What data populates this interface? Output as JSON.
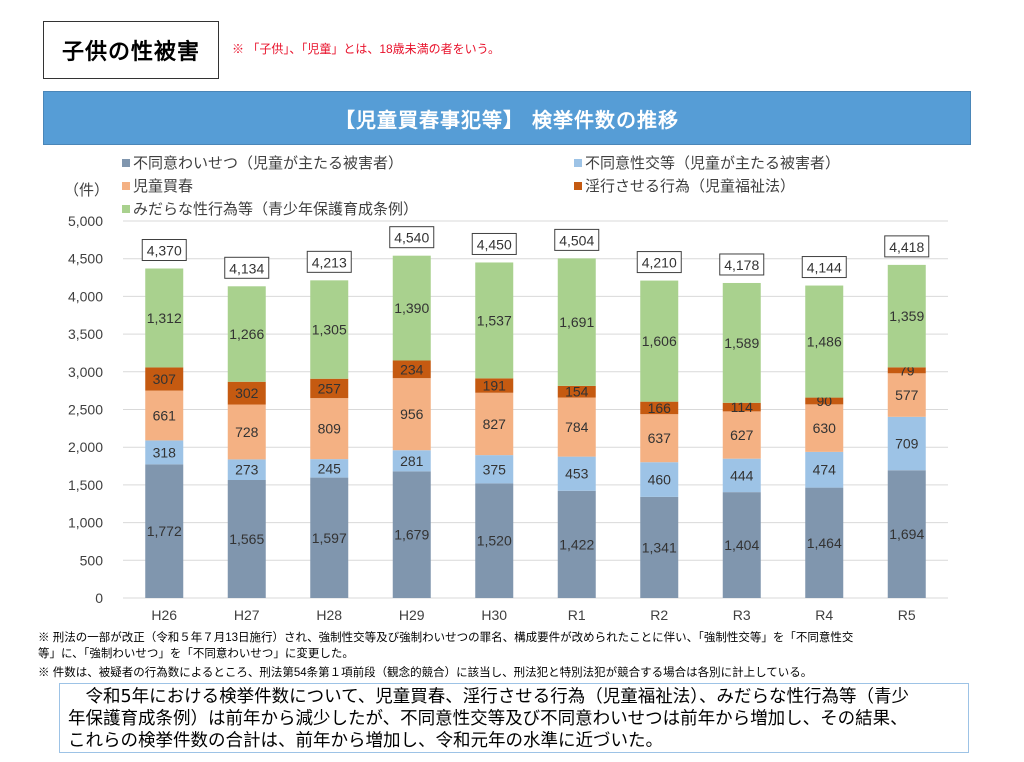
{
  "header": {
    "section_title": "子供の性被害",
    "definition_note": "※ 「子供」、「児童」とは、18歳未満の者をいう。",
    "banner_title": "【児童買春事犯等】 検挙件数の推移"
  },
  "colors": {
    "banner": "#569dd6",
    "note_red": "#e8102a",
    "series": [
      "#8096ae",
      "#9dc3e6",
      "#f4b183",
      "#c55a11",
      "#a9d18e"
    ]
  },
  "chart_data": {
    "type": "bar",
    "stacked": true,
    "title": "【児童買春事犯等】 検挙件数の推移",
    "xlabel": "",
    "ylabel": "（件）",
    "ylim": [
      0,
      5000
    ],
    "yticks": [
      0,
      500,
      1000,
      1500,
      2000,
      2500,
      3000,
      3500,
      4000,
      4500,
      5000
    ],
    "ytick_labels": [
      "0",
      "500",
      "1,000",
      "1,500",
      "2,000",
      "2,500",
      "3,000",
      "3,500",
      "4,000",
      "4,500",
      "5,000"
    ],
    "grid": true,
    "legend_position": "top",
    "categories": [
      "H26",
      "H27",
      "H28",
      "H29",
      "H30",
      "R1",
      "R2",
      "R3",
      "R4",
      "R5"
    ],
    "series": [
      {
        "name": "不同意わいせつ（児童が主たる被害者）",
        "values": [
          1772,
          1565,
          1597,
          1679,
          1520,
          1422,
          1341,
          1404,
          1464,
          1694
        ]
      },
      {
        "name": "不同意性交等（児童が主たる被害者）",
        "values": [
          318,
          273,
          245,
          281,
          375,
          453,
          460,
          444,
          474,
          709
        ]
      },
      {
        "name": "児童買春",
        "values": [
          661,
          728,
          809,
          956,
          827,
          784,
          637,
          627,
          630,
          577
        ]
      },
      {
        "name": "淫行させる行為（児童福祉法）",
        "values": [
          307,
          302,
          257,
          234,
          191,
          154,
          166,
          114,
          90,
          79
        ]
      },
      {
        "name": "みだらな性行為等（青少年保護育成条例）",
        "values": [
          1312,
          1266,
          1305,
          1390,
          1537,
          1691,
          1606,
          1589,
          1486,
          1359
        ]
      }
    ],
    "totals": [
      4370,
      4134,
      4213,
      4540,
      4450,
      4504,
      4210,
      4178,
      4144,
      4418
    ],
    "total_labels": [
      "4,370",
      "4,134",
      "4,213",
      "4,540",
      "4,450",
      "4,504",
      "4,210",
      "4,178",
      "4,144",
      "4,418"
    ]
  },
  "legend": {
    "items": [
      {
        "label": "不同意わいせつ（児童が主たる被害者）"
      },
      {
        "label": "不同意性交等（児童が主たる被害者）"
      },
      {
        "label": "児童買春"
      },
      {
        "label": "淫行させる行為（児童福祉法）"
      },
      {
        "label": "みだらな性行為等（青少年保護育成条例）"
      }
    ]
  },
  "unit_label": "（件）",
  "footnotes": {
    "line1": "※  刑法の一部が改正（令和５年７月13日施行）され、強制性交等及び強制わいせつの罪名、構成要件が改められたことに伴い、「強制性交等」を「不同意性交",
    "line2": "  等」に、「強制わいせつ」を「不同意わいせつ」に変更した。",
    "line3": "※  件数は、被疑者の行為数によるところ、刑法第54条第１項前段（観念的競合）に該当し、刑法犯と特別法犯が競合する場合は各別に計上している。"
  },
  "summary": {
    "line1": "　令和5年における検挙件数について、児童買春、淫行させる行為（児童福祉法）、みだらな性行為等（青少",
    "line2": "年保護育成条例）は前年から減少したが、不同意性交等及び不同意わいせつは前年から増加し、その結果、",
    "line3": "これらの検挙件数の合計は、前年から増加し、令和元年の水準に近づいた。"
  }
}
